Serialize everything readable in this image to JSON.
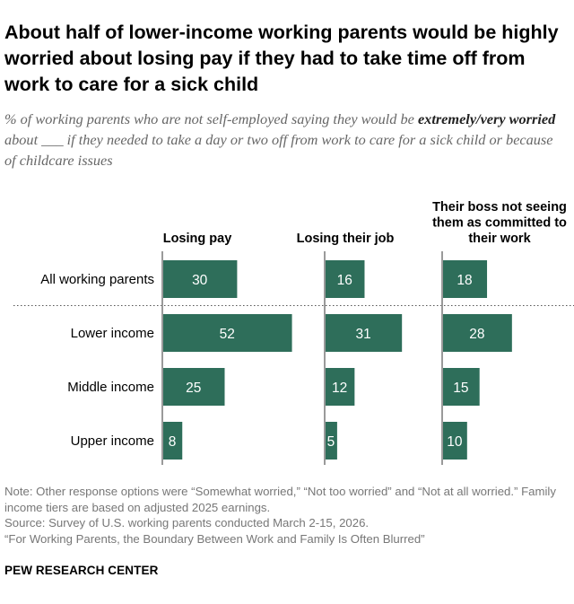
{
  "title": "About half of lower-income working parents would be highly worried about losing pay if they had to take time off from work to care for a sick child",
  "subtitle": {
    "part1": "% of working parents who are not self-employed saying they would be",
    "emphasis": "extremely/very worried",
    "part2": "about ___ if they needed to take a day or two off from work to care for a sick child or because of childcare issues"
  },
  "chart_data": {
    "type": "bar",
    "orientation": "horizontal",
    "categories": [
      "All working parents",
      "Lower income",
      "Middle income",
      "Upper income"
    ],
    "series": [
      {
        "name": "Losing pay",
        "values": [
          30,
          52,
          25,
          8
        ]
      },
      {
        "name": "Losing their job",
        "values": [
          16,
          31,
          12,
          5
        ]
      },
      {
        "name": "Their boss not seeing them as committed to their work",
        "values": [
          18,
          28,
          15,
          10
        ]
      }
    ],
    "bar_color": "#2e6e5a",
    "label_color": "#ffffff"
  },
  "notes": [
    "Note: Other response options were “Somewhat worried,” “Not too worried” and “Not at all worried.” Family income tiers are based on adjusted 2025 earnings.",
    "Source: Survey of U.S. working parents conducted March 2-15, 2026.",
    "“For Working Parents, the Boundary Between Work and Family Is Often Blurred”"
  ],
  "brand": "PEW RESEARCH CENTER"
}
